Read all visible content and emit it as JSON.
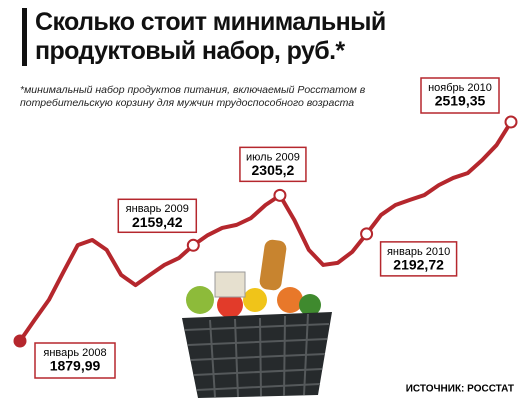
{
  "chart_data": {
    "type": "line",
    "title": "Сколько стоит минимальный продуктовый набор, руб.*",
    "subtitle": "*минимальный набор продуктов питания, включаемый Росстатом в потребительскую корзину для мужчин трудоспособного возраста",
    "source": "ИСТОЧНИК: РОССТАТ",
    "color": "#b5272d",
    "categories": [
      "январь 2008",
      null,
      null,
      null,
      null,
      null,
      null,
      null,
      null,
      null,
      null,
      null,
      "январь 2009",
      null,
      null,
      null,
      null,
      null,
      "июль 2009",
      null,
      null,
      null,
      null,
      null,
      "январь 2010",
      null,
      null,
      null,
      null,
      null,
      null,
      null,
      null,
      null,
      "ноябрь 2010"
    ],
    "values": [
      1879.99,
      1941,
      2000,
      2081,
      2160,
      2175,
      2146,
      2073,
      2043,
      2073,
      2102,
      2122,
      2159.42,
      2189,
      2210,
      2219,
      2239,
      2277,
      2305.2,
      2233,
      2146,
      2102,
      2108,
      2140,
      2192.72,
      2248,
      2277,
      2292,
      2306,
      2335,
      2356,
      2370,
      2408,
      2452,
      2519.35
    ],
    "value_labels": [
      "1879,99",
      null,
      null,
      null,
      null,
      null,
      null,
      null,
      null,
      null,
      null,
      null,
      "2159,42",
      null,
      null,
      null,
      null,
      null,
      "2305,2",
      null,
      null,
      null,
      null,
      null,
      "2192,72",
      null,
      null,
      null,
      null,
      null,
      null,
      null,
      null,
      null,
      "2519,35"
    ]
  }
}
